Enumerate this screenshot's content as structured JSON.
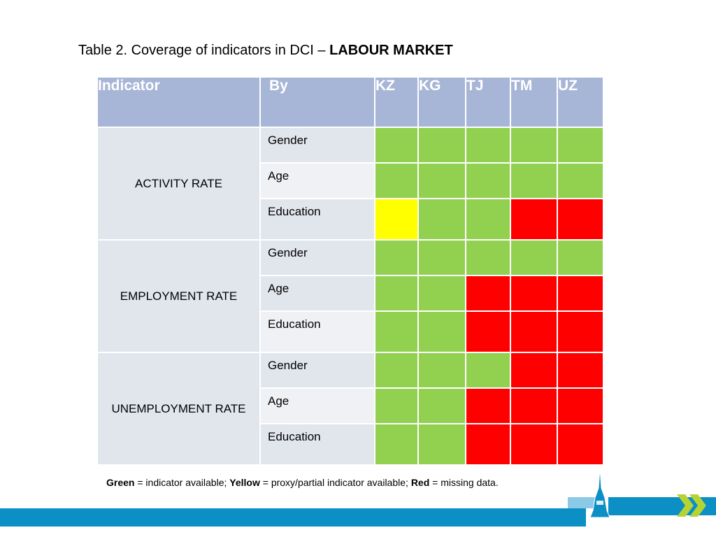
{
  "title": {
    "prefix": "Table 2. Coverage of indicators in DCI – ",
    "bold": "LABOUR MARKET"
  },
  "table": {
    "headers": {
      "indicator": "Indicator",
      "by": "By",
      "countries": [
        "KZ",
        "KG",
        "TJ",
        "TM",
        "UZ"
      ]
    },
    "groups": [
      {
        "indicator": "ACTIVITY RATE",
        "rows": [
          {
            "by": "Gender",
            "cells": [
              "green",
              "green",
              "green",
              "green",
              "green"
            ]
          },
          {
            "by": "Age",
            "cells": [
              "green",
              "green",
              "green",
              "green",
              "green"
            ]
          },
          {
            "by": "Education",
            "cells": [
              "yellow",
              "green",
              "green",
              "red",
              "red"
            ]
          }
        ]
      },
      {
        "indicator": "EMPLOYMENT RATE",
        "rows": [
          {
            "by": "Gender",
            "cells": [
              "green",
              "green",
              "green",
              "green",
              "green"
            ]
          },
          {
            "by": "Age",
            "cells": [
              "green",
              "green",
              "red",
              "red",
              "red"
            ]
          },
          {
            "by": "Education",
            "cells": [
              "green",
              "green",
              "red",
              "red",
              "red"
            ]
          }
        ]
      },
      {
        "indicator": "UNEMPLOYMENT RATE",
        "rows": [
          {
            "by": "Gender",
            "cells": [
              "green",
              "green",
              "green",
              "red",
              "red"
            ]
          },
          {
            "by": "Age",
            "cells": [
              "green",
              "green",
              "red",
              "red",
              "red"
            ]
          },
          {
            "by": "Education",
            "cells": [
              "green",
              "green",
              "red",
              "red",
              "red"
            ]
          }
        ]
      }
    ]
  },
  "legend": {
    "green_label": "Green",
    "green_text": " = indicator available; ",
    "yellow_label": "Yellow",
    "yellow_text": " = proxy/partial indicator available; ",
    "red_label": "Red",
    "red_text": " = missing data."
  },
  "colors": {
    "green": "#92d050",
    "yellow": "#ffff00",
    "red": "#ff0000",
    "header": "#a7b5d7",
    "accent_blue": "#0b8fc4",
    "chevron_green": "#b5d334"
  },
  "icons": [
    "tower-icon",
    "double-chevron-icon"
  ]
}
